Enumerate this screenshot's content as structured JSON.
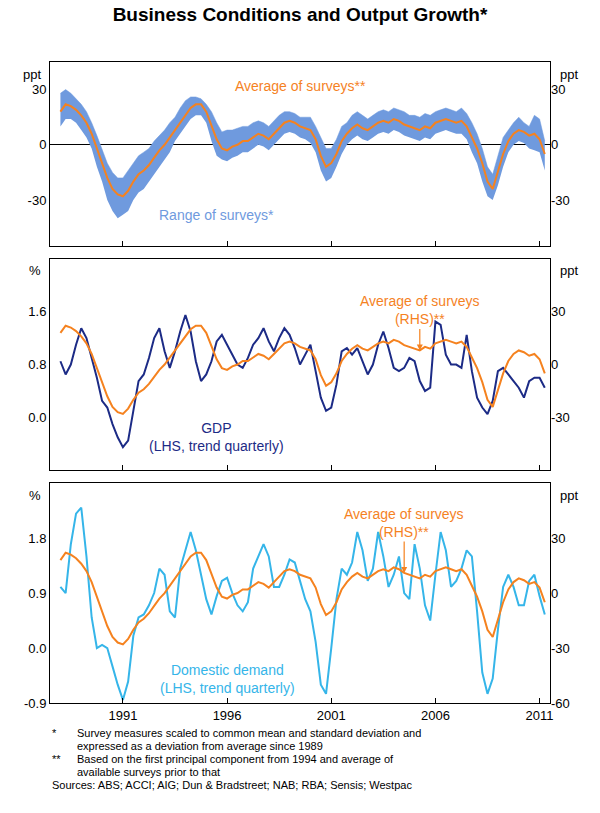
{
  "title": "Business Conditions and Output Growth*",
  "footnotes": [
    {
      "mark": "*",
      "lines": [
        "Survey measures scaled to common mean and standard deviation and",
        "expressed as a deviation from average since 1989"
      ]
    },
    {
      "mark": "**",
      "lines": [
        "Based on the first principal component from 1994 and average of",
        "available surveys prior to that"
      ]
    }
  ],
  "sources": "Sources: ABS; ACCI; AIG; Dun & Bradstreet; NAB; RBA; Sensis; Westpac",
  "chart_data": [
    {
      "type": "line",
      "grid": false,
      "tick_labels": "y",
      "ylabel": "ppt",
      "y2label": "ppt",
      "xlim": [
        1987.5,
        2011.5
      ],
      "xticks": [
        1991,
        1996,
        2001,
        2006,
        2011
      ],
      "ylim": [
        -55,
        45
      ],
      "yticks": [
        -30,
        0,
        30
      ],
      "y2lim": [
        -55,
        45
      ],
      "y2ticks": [
        -30,
        0,
        30
      ],
      "x": [
        1988,
        1988.25,
        1988.5,
        1988.75,
        1989,
        1989.25,
        1989.5,
        1989.75,
        1990,
        1990.25,
        1990.5,
        1990.75,
        1991,
        1991.25,
        1991.5,
        1991.75,
        1992,
        1992.25,
        1992.5,
        1992.75,
        1993,
        1993.25,
        1993.5,
        1993.75,
        1994,
        1994.25,
        1994.5,
        1994.75,
        1995,
        1995.25,
        1995.5,
        1995.75,
        1996,
        1996.25,
        1996.5,
        1996.75,
        1997,
        1997.25,
        1997.5,
        1997.75,
        1998,
        1998.25,
        1998.5,
        1998.75,
        1999,
        1999.25,
        1999.5,
        1999.75,
        2000,
        2000.25,
        2000.5,
        2000.75,
        2001,
        2001.25,
        2001.5,
        2001.75,
        2002,
        2002.25,
        2002.5,
        2002.75,
        2003,
        2003.25,
        2003.5,
        2003.75,
        2004,
        2004.25,
        2004.5,
        2004.75,
        2005,
        2005.25,
        2005.5,
        2005.75,
        2006,
        2006.25,
        2006.5,
        2006.75,
        2007,
        2007.25,
        2007.5,
        2007.75,
        2008,
        2008.25,
        2008.5,
        2008.75,
        2009,
        2009.25,
        2009.5,
        2009.75,
        2010,
        2010.25,
        2010.5,
        2010.75,
        2011,
        2011.25
      ],
      "series": [
        {
          "name": "Range of surveys*",
          "type": "band",
          "color": "#6f9ade",
          "low": [
            10,
            14,
            14,
            12,
            8,
            4,
            -2,
            -12,
            -20,
            -30,
            -36,
            -40,
            -38,
            -36,
            -30,
            -26,
            -24,
            -20,
            -16,
            -12,
            -8,
            -4,
            2,
            6,
            10,
            14,
            16,
            16,
            12,
            2,
            -6,
            -8,
            -9,
            -7,
            -6,
            -4,
            -4,
            -2,
            0,
            -1,
            -3,
            0,
            3,
            6,
            7,
            6,
            4,
            3,
            1,
            -4,
            -14,
            -20,
            -18,
            -12,
            -5,
            0,
            3,
            5,
            3,
            2,
            4,
            6,
            7,
            6,
            8,
            7,
            5,
            4,
            3,
            2,
            4,
            3,
            6,
            7,
            8,
            7,
            6,
            6,
            3,
            -4,
            -10,
            -20,
            -28,
            -30,
            -22,
            -12,
            -4,
            0,
            2,
            1,
            -2,
            -3,
            -4,
            -14
          ],
          "high": [
            28,
            30,
            28,
            25,
            22,
            18,
            12,
            5,
            -2,
            -10,
            -15,
            -18,
            -18,
            -14,
            -10,
            -6,
            -4,
            -2,
            2,
            5,
            8,
            12,
            15,
            20,
            24,
            26,
            26,
            25,
            22,
            18,
            12,
            7,
            8,
            8,
            9,
            10,
            10,
            12,
            13,
            12,
            10,
            13,
            16,
            18,
            18,
            17,
            15,
            15,
            15,
            10,
            4,
            -2,
            -2,
            3,
            10,
            12,
            16,
            18,
            16,
            14,
            16,
            18,
            19,
            18,
            20,
            19,
            18,
            16,
            16,
            15,
            17,
            16,
            18,
            19,
            20,
            19,
            18,
            20,
            17,
            12,
            6,
            -2,
            -12,
            -16,
            -6,
            4,
            8,
            12,
            15,
            12,
            10,
            16,
            14,
            2
          ]
        },
        {
          "name": "Average of surveys**",
          "type": "line",
          "color": "#f5821f",
          "values": [
            18,
            22,
            21,
            19,
            16,
            12,
            6,
            -2,
            -10,
            -18,
            -24,
            -27,
            -28,
            -25,
            -20,
            -16,
            -14,
            -11,
            -7,
            -3,
            0,
            4,
            8,
            12,
            16,
            20,
            22,
            22,
            18,
            10,
            3,
            -2,
            -3,
            -1,
            0,
            2,
            2,
            4,
            6,
            5,
            3,
            6,
            9,
            12,
            13,
            12,
            10,
            9,
            8,
            3,
            -6,
            -12,
            -10,
            -5,
            2,
            6,
            9,
            11,
            9,
            8,
            10,
            12,
            13,
            12,
            14,
            13,
            11,
            10,
            9,
            8,
            10,
            9,
            12,
            13,
            14,
            13,
            12,
            13,
            10,
            4,
            -2,
            -10,
            -20,
            -24,
            -15,
            -5,
            2,
            6,
            8,
            7,
            5,
            6,
            3,
            -5
          ]
        }
      ]
    },
    {
      "type": "line",
      "grid": false,
      "tick_labels": "y",
      "ylabel": "%",
      "y2label": "ppt",
      "xlim": [
        1987.5,
        2011.5
      ],
      "xticks": [
        1991,
        1996,
        2001,
        2006,
        2011
      ],
      "ylim": [
        -0.8,
        2.4
      ],
      "yticks": [
        {
          "value": 0,
          "label": "0.0"
        },
        0.8,
        1.6
      ],
      "y2lim": [
        -60,
        60
      ],
      "y2ticks": [
        -30,
        0,
        30
      ],
      "x": [
        1988,
        1988.25,
        1988.5,
        1988.75,
        1989,
        1989.25,
        1989.5,
        1989.75,
        1990,
        1990.25,
        1990.5,
        1990.75,
        1991,
        1991.25,
        1991.5,
        1991.75,
        1992,
        1992.25,
        1992.5,
        1992.75,
        1993,
        1993.25,
        1993.5,
        1993.75,
        1994,
        1994.25,
        1994.5,
        1994.75,
        1995,
        1995.25,
        1995.5,
        1995.75,
        1996,
        1996.25,
        1996.5,
        1996.75,
        1997,
        1997.25,
        1997.5,
        1997.75,
        1998,
        1998.25,
        1998.5,
        1998.75,
        1999,
        1999.25,
        1999.5,
        1999.75,
        2000,
        2000.25,
        2000.5,
        2000.75,
        2001,
        2001.25,
        2001.5,
        2001.75,
        2002,
        2002.25,
        2002.5,
        2002.75,
        2003,
        2003.25,
        2003.5,
        2003.75,
        2004,
        2004.25,
        2004.5,
        2004.75,
        2005,
        2005.25,
        2005.5,
        2005.75,
        2006,
        2006.25,
        2006.5,
        2006.75,
        2007,
        2007.25,
        2007.5,
        2007.75,
        2008,
        2008.25,
        2008.5,
        2008.75,
        2009,
        2009.25,
        2009.5,
        2009.75,
        2010,
        2010.25,
        2010.5,
        2010.75,
        2011,
        2011.25
      ],
      "series": [
        {
          "name": "GDP",
          "note": "(LHS, trend quarterly)",
          "type": "line",
          "color": "#1c2b86",
          "values": [
            0.85,
            0.65,
            0.8,
            1.1,
            1.35,
            1.2,
            0.9,
            0.6,
            0.25,
            0.15,
            -0.1,
            -0.3,
            -0.45,
            -0.35,
            0.1,
            0.55,
            0.65,
            0.9,
            1.2,
            1.35,
            1.0,
            0.75,
            1.0,
            1.3,
            1.55,
            1.3,
            0.85,
            0.55,
            0.65,
            0.85,
            1.15,
            1.25,
            1.1,
            0.95,
            0.8,
            0.75,
            0.9,
            1.1,
            1.2,
            1.35,
            1.15,
            1.0,
            1.2,
            1.35,
            1.25,
            1.05,
            0.8,
            0.95,
            1.1,
            0.7,
            0.3,
            0.1,
            0.15,
            0.5,
            1.0,
            1.05,
            0.95,
            1.05,
            0.85,
            0.65,
            0.8,
            1.1,
            1.3,
            1.05,
            0.75,
            0.7,
            0.75,
            0.9,
            0.85,
            0.55,
            0.4,
            0.45,
            1.45,
            1.4,
            0.95,
            0.8,
            0.8,
            0.75,
            1.25,
            0.7,
            0.3,
            0.15,
            0.05,
            0.25,
            0.7,
            0.75,
            0.65,
            0.55,
            0.45,
            0.3,
            0.55,
            0.6,
            0.6,
            0.45
          ]
        },
        {
          "name": "Average of surveys",
          "note": "(RHS)**",
          "type": "line",
          "axis": "y2",
          "color": "#f5821f",
          "values": [
            18,
            22,
            21,
            19,
            16,
            12,
            6,
            -2,
            -10,
            -18,
            -24,
            -27,
            -28,
            -25,
            -20,
            -16,
            -14,
            -11,
            -7,
            -3,
            0,
            4,
            8,
            12,
            16,
            20,
            22,
            22,
            18,
            10,
            3,
            -2,
            -3,
            -1,
            0,
            2,
            2,
            4,
            6,
            5,
            3,
            6,
            9,
            12,
            13,
            12,
            10,
            9,
            8,
            3,
            -6,
            -12,
            -10,
            -5,
            2,
            6,
            9,
            11,
            9,
            8,
            10,
            12,
            13,
            12,
            14,
            13,
            11,
            10,
            9,
            8,
            10,
            9,
            12,
            13,
            14,
            13,
            12,
            13,
            10,
            4,
            -2,
            -10,
            -20,
            -24,
            -15,
            -5,
            2,
            6,
            8,
            7,
            5,
            6,
            3,
            -5
          ]
        }
      ]
    },
    {
      "type": "line",
      "grid": false,
      "ylabel": "%",
      "y2label": "ppt",
      "xlim": [
        1987.5,
        2011.5
      ],
      "xticks": [
        1991,
        1996,
        2001,
        2006,
        2011
      ],
      "ylim": [
        -0.9,
        2.7
      ],
      "yticks": [
        -0.9,
        {
          "value": 0,
          "label": "0.0"
        },
        0.9,
        1.8
      ],
      "y2lim": [
        -60,
        60
      ],
      "y2ticks": [
        -60,
        -30,
        0,
        30
      ],
      "x": [
        1988,
        1988.25,
        1988.5,
        1988.75,
        1989,
        1989.25,
        1989.5,
        1989.75,
        1990,
        1990.25,
        1990.5,
        1990.75,
        1991,
        1991.25,
        1991.5,
        1991.75,
        1992,
        1992.25,
        1992.5,
        1992.75,
        1993,
        1993.25,
        1993.5,
        1993.75,
        1994,
        1994.25,
        1994.5,
        1994.75,
        1995,
        1995.25,
        1995.5,
        1995.75,
        1996,
        1996.25,
        1996.5,
        1996.75,
        1997,
        1997.25,
        1997.5,
        1997.75,
        1998,
        1998.25,
        1998.5,
        1998.75,
        1999,
        1999.25,
        1999.5,
        1999.75,
        2000,
        2000.25,
        2000.5,
        2000.75,
        2001,
        2001.25,
        2001.5,
        2001.75,
        2002,
        2002.25,
        2002.5,
        2002.75,
        2003,
        2003.25,
        2003.5,
        2003.75,
        2004,
        2004.25,
        2004.5,
        2004.75,
        2005,
        2005.25,
        2005.5,
        2005.75,
        2006,
        2006.25,
        2006.5,
        2006.75,
        2007,
        2007.25,
        2007.5,
        2007.75,
        2008,
        2008.25,
        2008.5,
        2008.75,
        2009,
        2009.25,
        2009.5,
        2009.75,
        2010,
        2010.25,
        2010.5,
        2010.75,
        2011,
        2011.25
      ],
      "series": [
        {
          "name": "Domestic demand",
          "note": "(LHS, trend quarterly)",
          "type": "line",
          "color": "#35b5e9",
          "values": [
            1.0,
            0.9,
            1.7,
            2.2,
            2.3,
            1.5,
            0.5,
            0.0,
            0.05,
            0.0,
            -0.3,
            -0.6,
            -0.85,
            -0.55,
            0.2,
            0.5,
            0.55,
            0.7,
            0.9,
            1.3,
            1.2,
            0.6,
            0.5,
            1.3,
            1.6,
            1.9,
            1.6,
            1.2,
            0.8,
            0.55,
            0.85,
            1.1,
            1.15,
            0.9,
            0.7,
            0.6,
            0.75,
            1.3,
            1.5,
            1.7,
            1.5,
            1.0,
            1.0,
            1.2,
            1.45,
            1.4,
            1.1,
            0.8,
            0.6,
            0.1,
            -0.6,
            -0.75,
            0.0,
            0.8,
            1.3,
            1.2,
            1.4,
            1.9,
            1.6,
            1.1,
            1.3,
            1.9,
            1.5,
            1.0,
            1.2,
            1.5,
            0.9,
            0.8,
            1.7,
            1.3,
            0.7,
            0.45,
            1.2,
            1.9,
            1.6,
            1.0,
            1.1,
            1.3,
            1.6,
            1.5,
            0.6,
            -0.4,
            -0.75,
            -0.5,
            0.3,
            1.0,
            1.2,
            1.0,
            0.7,
            0.7,
            1.1,
            1.2,
            0.85,
            0.55
          ]
        },
        {
          "name": "Average of surveys",
          "note": "(RHS)**",
          "type": "line",
          "axis": "y2",
          "color": "#f5821f",
          "values": [
            18,
            22,
            21,
            19,
            16,
            12,
            6,
            -2,
            -10,
            -18,
            -24,
            -27,
            -28,
            -25,
            -20,
            -16,
            -14,
            -11,
            -7,
            -3,
            0,
            4,
            8,
            12,
            16,
            20,
            22,
            22,
            18,
            10,
            3,
            -2,
            -3,
            -1,
            0,
            2,
            2,
            4,
            6,
            5,
            3,
            6,
            9,
            12,
            13,
            12,
            10,
            9,
            8,
            3,
            -6,
            -12,
            -10,
            -5,
            2,
            6,
            9,
            11,
            9,
            8,
            10,
            12,
            13,
            12,
            14,
            13,
            11,
            10,
            9,
            8,
            10,
            9,
            12,
            13,
            14,
            13,
            12,
            13,
            10,
            4,
            -2,
            -10,
            -20,
            -24,
            -15,
            -5,
            2,
            6,
            8,
            7,
            5,
            6,
            3,
            -5
          ]
        }
      ]
    }
  ]
}
